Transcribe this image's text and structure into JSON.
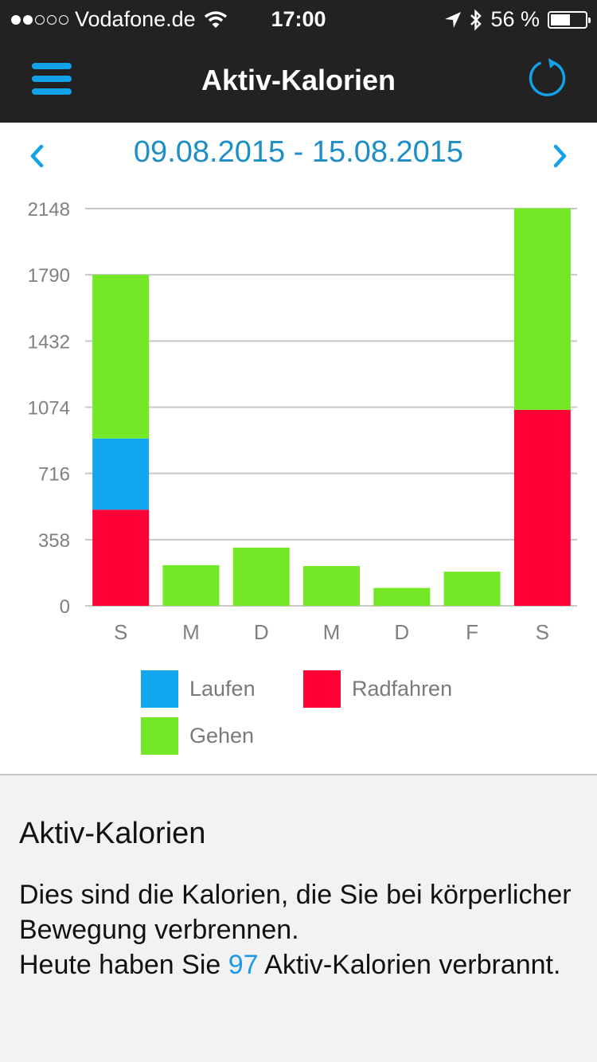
{
  "status_bar": {
    "carrier": "Vodafone.de",
    "time": "17:00",
    "battery": "56 %",
    "battery_level": 0.56
  },
  "nav": {
    "title": "Aktiv-Kalorien",
    "menu_icon": "menu-icon",
    "refresh_icon": "refresh-icon",
    "accent": "#13a2e9"
  },
  "date_selector": {
    "range": "09.08.2015 - 15.08.2015",
    "prev_icon": "chevron-left-icon",
    "next_icon": "chevron-right-icon"
  },
  "chart_data": {
    "type": "bar",
    "stacked": true,
    "categories": [
      "S",
      "M",
      "D",
      "M",
      "D",
      "F",
      "S"
    ],
    "y_ticks": [
      0,
      358,
      716,
      1074,
      1432,
      1790,
      2148
    ],
    "ylim": [
      0,
      2148
    ],
    "grid": true,
    "series": [
      {
        "name": "Radfahren",
        "color": "#ff0037",
        "values": [
          520,
          0,
          0,
          0,
          0,
          0,
          1060
        ]
      },
      {
        "name": "Laufen",
        "color": "#12a6ee",
        "values": [
          385,
          0,
          0,
          0,
          0,
          0,
          0
        ]
      },
      {
        "name": "Gehen",
        "color": "#74e826",
        "values": [
          885,
          220,
          315,
          215,
          97,
          185,
          1090
        ]
      }
    ]
  },
  "legend": [
    {
      "label": "Laufen",
      "color": "#12a6ee"
    },
    {
      "label": "Radfahren",
      "color": "#ff0037"
    },
    {
      "label": "Gehen",
      "color": "#74e826"
    }
  ],
  "info": {
    "title": "Aktiv-Kalorien",
    "text_line1": "Dies sind die Kalorien, die Sie bei körperlicher Bewegung verbrennen.",
    "text_pre": "Heute haben Sie ",
    "value": "97",
    "text_post": " Aktiv-Kalorien verbrannt."
  }
}
